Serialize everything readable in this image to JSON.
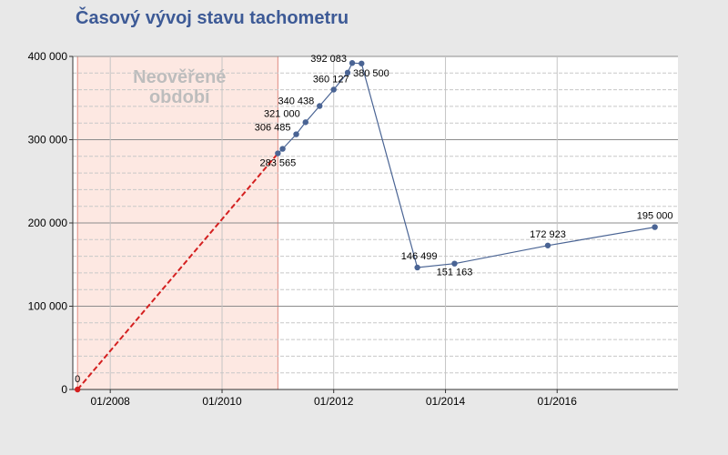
{
  "chart_data": {
    "type": "line",
    "title": "Časový vývoj stavu tachometru",
    "xlabel": "",
    "ylabel": "",
    "ylim": [
      0,
      400000
    ],
    "xlim": [
      "2007-05-01",
      "2018-03-01"
    ],
    "y_ticks": [
      "0",
      "100 000",
      "200 000",
      "300 000",
      "400 000"
    ],
    "x_ticks": [
      {
        "date": "2008-01-01",
        "label": "01/2008"
      },
      {
        "date": "2010-01-01",
        "label": "01/2010"
      },
      {
        "date": "2012-01-01",
        "label": "01/2012"
      },
      {
        "date": "2014-01-01",
        "label": "01/2014"
      },
      {
        "date": "2016-01-01",
        "label": "01/2016"
      }
    ],
    "unverified_zone": {
      "label_lines": [
        "Neověřené",
        "období"
      ],
      "from": "2007-06-01",
      "to": "2011-01-01",
      "fill": "#fde8e2",
      "border": "#e08a80"
    },
    "dashed_segment": {
      "color": "#d42020",
      "points": [
        {
          "x": "2007-06-01",
          "y": 0
        },
        {
          "x": "2011-01-01",
          "y": 283565
        }
      ]
    },
    "series": [
      {
        "color": "#4a6494",
        "points": [
          {
            "x": "2007-06-01",
            "y": 0,
            "label": "0"
          },
          {
            "x": "2011-01-01",
            "y": 283565,
            "label": "283 565"
          },
          {
            "x": "2011-02-01",
            "y": 289000,
            "label": ""
          },
          {
            "x": "2011-05-01",
            "y": 306485,
            "label": "306 485"
          },
          {
            "x": "2011-07-01",
            "y": 321000,
            "label": "321 000"
          },
          {
            "x": "2011-10-01",
            "y": 340438,
            "label": "340 438"
          },
          {
            "x": "2012-01-01",
            "y": 360127,
            "label": "360 127"
          },
          {
            "x": "2012-04-01",
            "y": 380500,
            "label": "380 500"
          },
          {
            "x": "2012-05-01",
            "y": 392083,
            "label": "392 083"
          },
          {
            "x": "2012-07-01",
            "y": 391500,
            "label": ""
          },
          {
            "x": "2013-07-01",
            "y": 146499,
            "label": "146 499"
          },
          {
            "x": "2014-03-01",
            "y": 151163,
            "label": "151 163"
          },
          {
            "x": "2015-11-01",
            "y": 172923,
            "label": "172 923"
          },
          {
            "x": "2017-10-01",
            "y": 195000,
            "label": "195 000"
          }
        ]
      }
    ],
    "grid": true,
    "legend": "none"
  }
}
